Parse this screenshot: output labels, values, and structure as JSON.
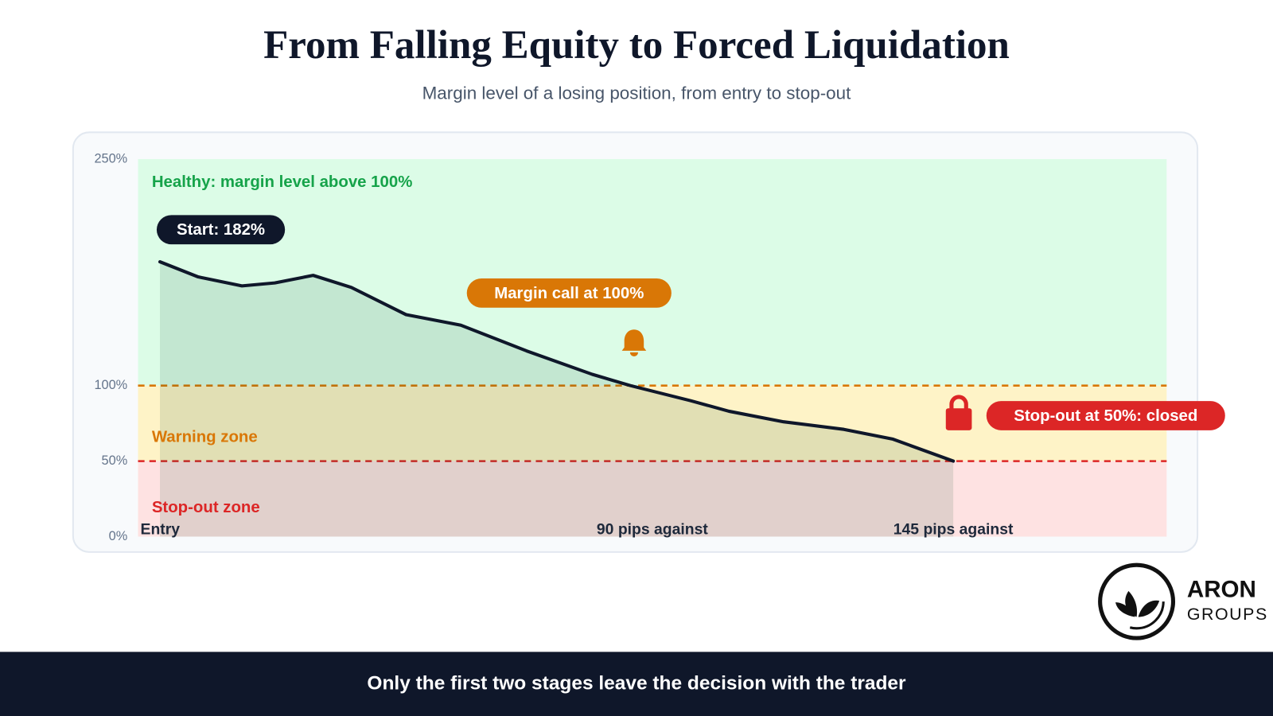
{
  "chart_data": {
    "type": "area",
    "title": "From Falling Equity to Forced Liquidation",
    "subtitle": "Margin level of a losing position, from entry to stop-out",
    "x": [
      0,
      7,
      15,
      21,
      28,
      35,
      45,
      55,
      67,
      79,
      86,
      97,
      104,
      114,
      125,
      134,
      145
    ],
    "values": [
      182,
      172,
      166,
      168,
      173,
      165,
      147,
      140,
      123,
      107.5,
      100,
      90,
      83,
      76,
      71,
      64.5,
      50
    ],
    "color": "#0f172a",
    "xlim": [
      -4,
      184
    ],
    "xticks": [
      {
        "value": 0,
        "label": "Entry"
      },
      {
        "value": 90,
        "label": "90 pips against"
      },
      {
        "value": 145,
        "label": "145 pips against"
      }
    ],
    "ylim": [
      0,
      250
    ],
    "yticks": [
      {
        "value": 0,
        "label": "0%"
      },
      {
        "value": 50,
        "label": "50%"
      },
      {
        "value": 100,
        "label": "100%"
      },
      {
        "value": 250,
        "label": "250%"
      }
    ],
    "zones": [
      {
        "from": 100,
        "to": 250,
        "label": "Healthy: margin level above 100%",
        "color": "#dcfce7",
        "text_color": "#16a34a"
      },
      {
        "from": 50,
        "to": 100,
        "label": "Warning zone",
        "color": "#fef3c7",
        "text_color": "#d97706"
      },
      {
        "from": 0,
        "to": 50,
        "label": "Stop-out zone",
        "color": "#fee2e2",
        "text_color": "#dc2626"
      }
    ],
    "thresholds": [
      {
        "value": 100,
        "color": "#d97706"
      },
      {
        "value": 50,
        "color": "#dc2626"
      }
    ],
    "annotations": [
      {
        "text": "Start: 182%",
        "color": "#0f172a"
      },
      {
        "text": "Margin call at 100%",
        "color": "#d97706"
      },
      {
        "text": "Stop-out at 50%: closed",
        "color": "#dc2626"
      }
    ]
  },
  "footer": "Only the first two stages leave the decision with the trader",
  "brand": {
    "name": "ARON",
    "sub": "GROUPS"
  }
}
